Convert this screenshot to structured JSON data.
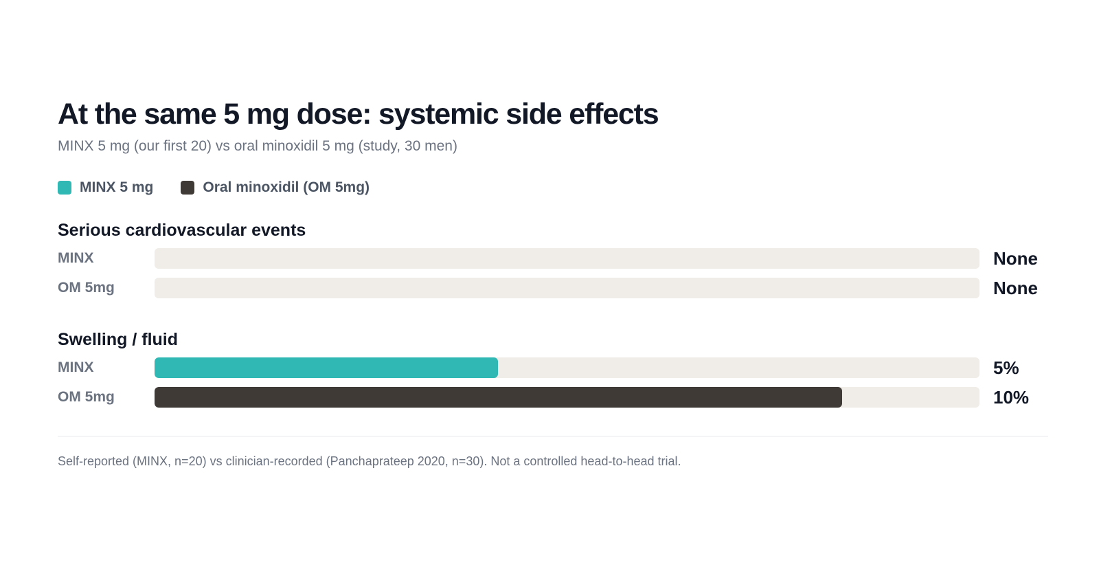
{
  "chart_data": {
    "type": "bar",
    "orientation": "horizontal",
    "title": "At the same 5 mg dose: systemic side effects",
    "subtitle": "MINX 5 mg (our first 20) vs oral minoxidil 5 mg (study, 30 men)",
    "legend": [
      {
        "label": "MINX 5 mg",
        "color": "#2fb8b4"
      },
      {
        "label": "Oral minoxidil (OM 5mg)",
        "color": "#3f3a36"
      }
    ],
    "scale_max_percent": 12,
    "groups": [
      {
        "title": "Serious cardiovascular events",
        "rows": [
          {
            "label": "MINX",
            "value": 0,
            "display": "None",
            "color": "#2fb8b4"
          },
          {
            "label": "OM 5mg",
            "value": 0,
            "display": "None",
            "color": "#3f3a36"
          }
        ]
      },
      {
        "title": "Swelling / fluid",
        "rows": [
          {
            "label": "MINX",
            "value": 5,
            "display": "5%",
            "color": "#2fb8b4"
          },
          {
            "label": "OM 5mg",
            "value": 10,
            "display": "10%",
            "color": "#3f3a36"
          }
        ]
      }
    ],
    "footnote": "Self-reported (MINX, n=20) vs clinician-recorded (Panchaprateep 2020, n=30). Not a controlled head-to-head trial."
  }
}
